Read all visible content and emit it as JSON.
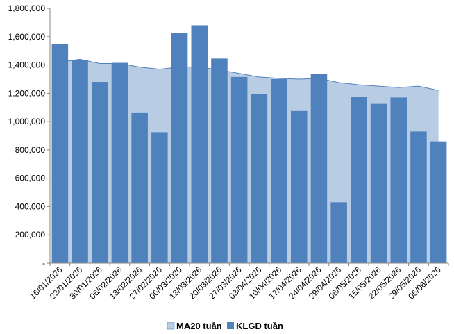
{
  "chart_data": {
    "type": "bar",
    "categories": [
      "16/01/2026",
      "23/01/2026",
      "30/01/2026",
      "06/02/2026",
      "13/02/2026",
      "27/02/2026",
      "06/03/2026",
      "13/03/2026",
      "20/03/2026",
      "27/03/2026",
      "03/04/2026",
      "10/04/2026",
      "17/04/2026",
      "24/04/2026",
      "29/04/2026",
      "08/05/2026",
      "15/05/2026",
      "22/05/2026",
      "29/05/2026",
      "05/06/2026"
    ],
    "series": [
      {
        "name": "MA20 tuần",
        "type": "area",
        "color": "#b8cce4",
        "line_color": "#4f81bd",
        "values": [
          1420000,
          1440000,
          1410000,
          1410000,
          1385000,
          1370000,
          1385000,
          1385000,
          1365000,
          1340000,
          1315000,
          1305000,
          1300000,
          1305000,
          1275000,
          1260000,
          1250000,
          1240000,
          1250000,
          1220000
        ]
      },
      {
        "name": "KLGD tuần",
        "type": "bar",
        "color": "#4f81bd",
        "values": [
          1550000,
          1435000,
          1280000,
          1415000,
          1060000,
          925000,
          1625000,
          1680000,
          1445000,
          1315000,
          1195000,
          1300000,
          1075000,
          1335000,
          430000,
          1175000,
          1125000,
          1170000,
          930000,
          860000
        ]
      }
    ],
    "ylim": [
      0,
      1800000
    ],
    "yticks": [
      0,
      200000,
      400000,
      600000,
      800000,
      1000000,
      1200000,
      1400000,
      1600000,
      1800000
    ],
    "ytick_labels": [
      "-",
      "200,000",
      "400,000",
      "600,000",
      "800,000",
      "1,000,000",
      "1,200,000",
      "1,400,000",
      "1,600,000",
      "1,800,000"
    ],
    "grid": false,
    "legend_position": "bottom"
  }
}
